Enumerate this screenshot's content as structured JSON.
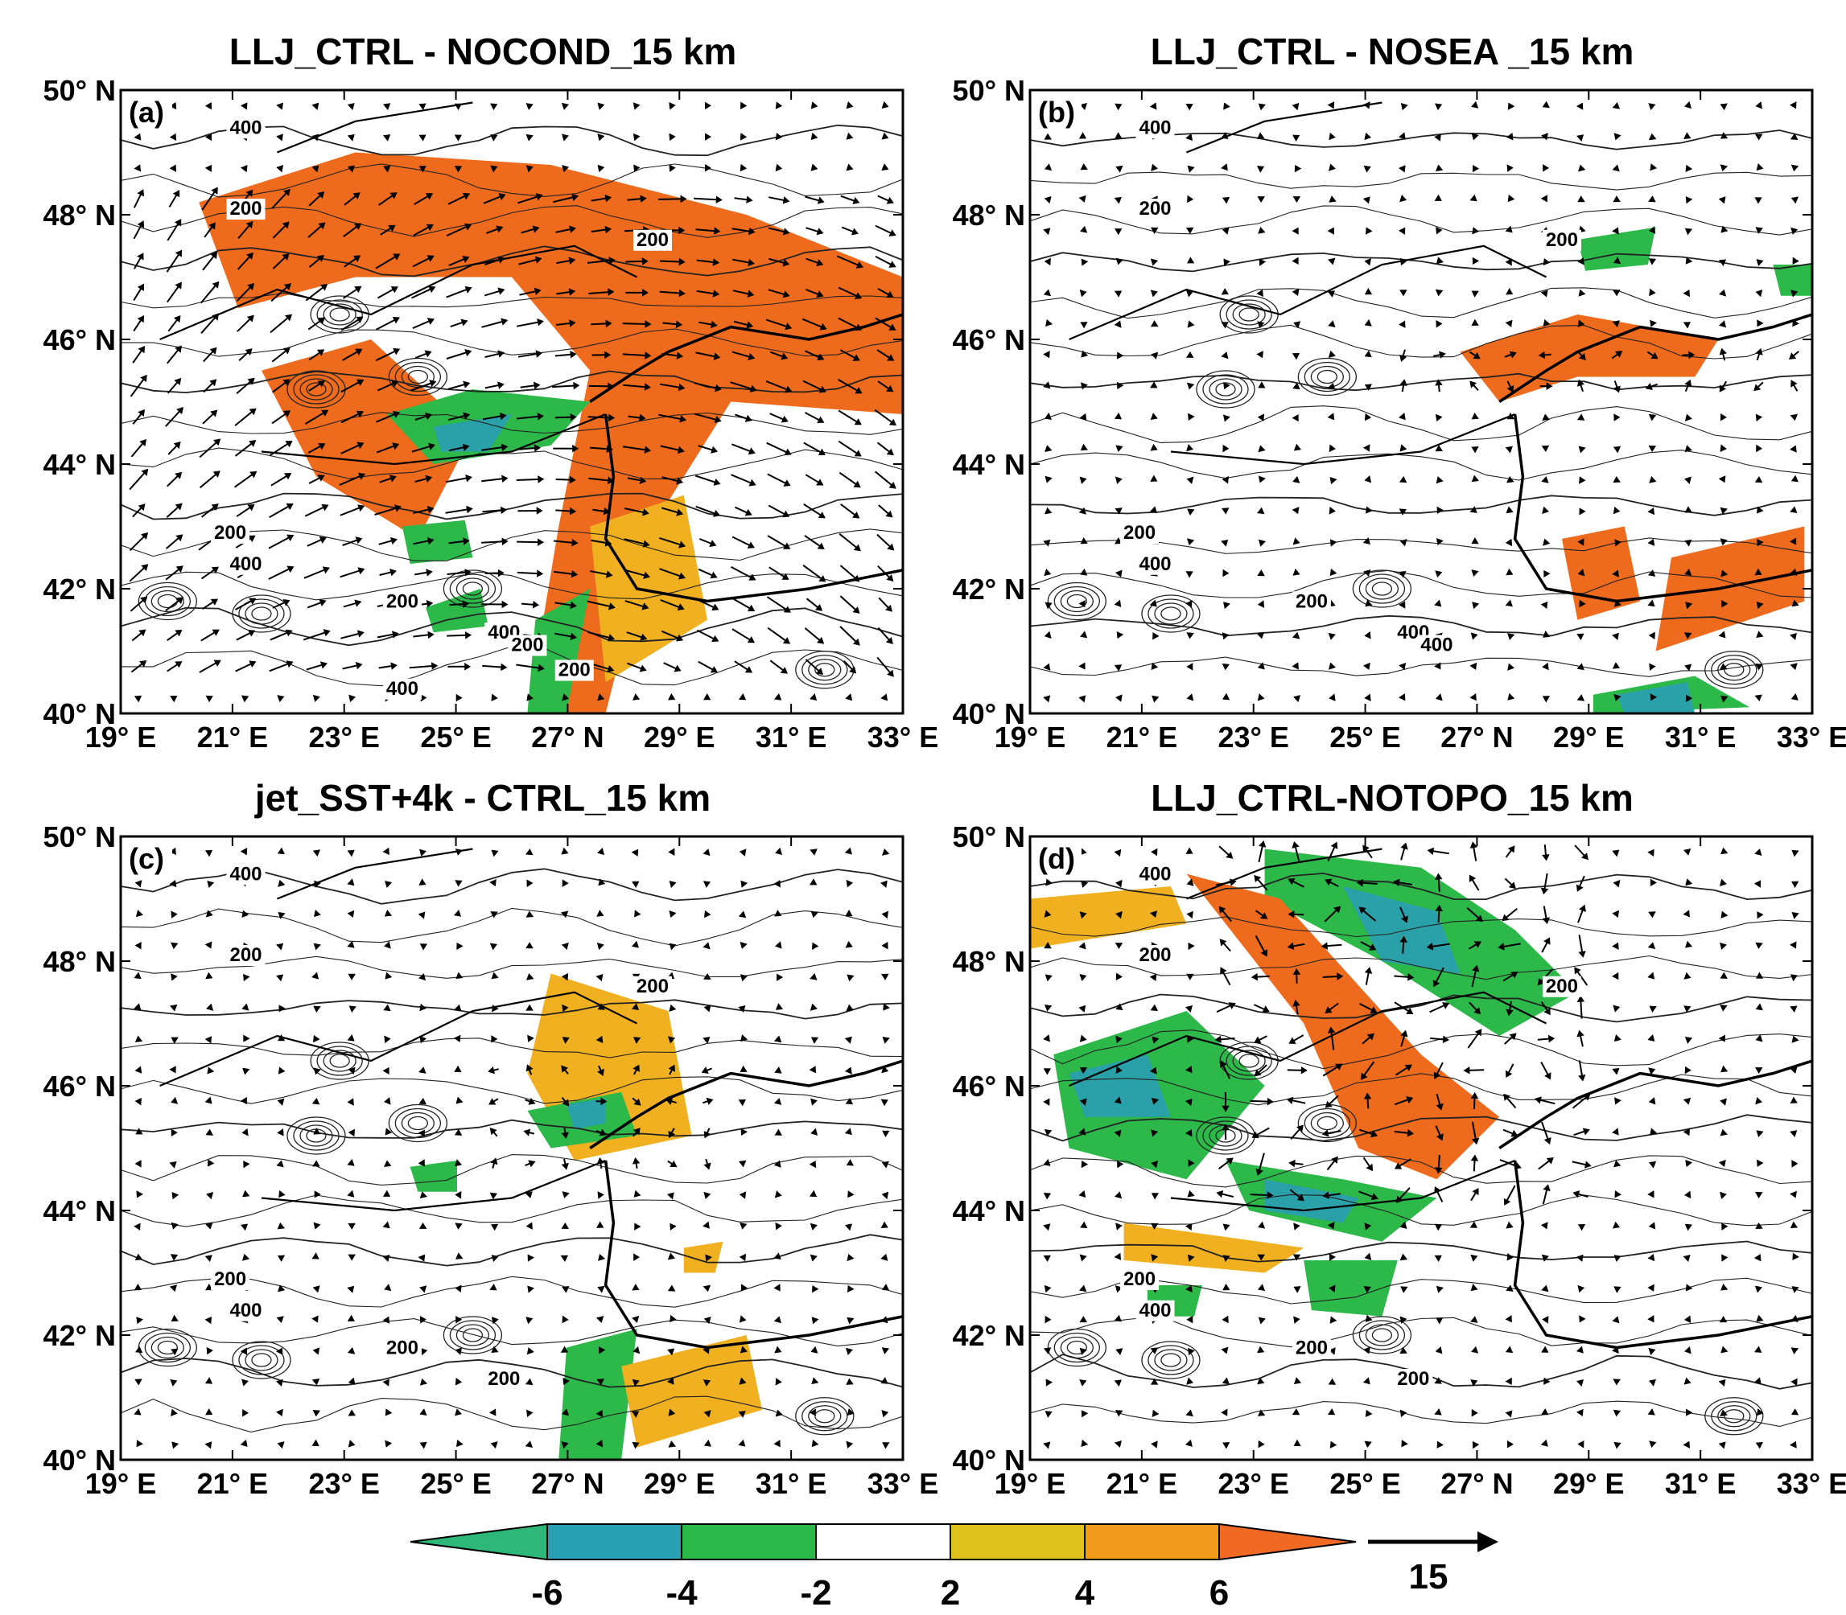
{
  "panels": [
    {
      "title": "LLJ_CTRL - NOCOND_15 km",
      "label": "(a)",
      "contour_labels": [
        "400",
        "200",
        "200",
        "200",
        "400",
        "200",
        "400",
        "200",
        "200",
        "400"
      ],
      "blobs": [
        {
          "c": "#ee6a1c",
          "pts": [
            [
              0.1,
              0.18
            ],
            [
              0.3,
              0.1
            ],
            [
              0.55,
              0.12
            ],
            [
              0.8,
              0.2
            ],
            [
              1.0,
              0.3
            ],
            [
              1.0,
              0.52
            ],
            [
              0.78,
              0.5
            ],
            [
              0.68,
              0.7
            ],
            [
              0.62,
              1.0
            ],
            [
              0.52,
              1.0
            ],
            [
              0.56,
              0.7
            ],
            [
              0.6,
              0.45
            ],
            [
              0.5,
              0.3
            ],
            [
              0.3,
              0.3
            ],
            [
              0.15,
              0.35
            ]
          ]
        },
        {
          "c": "#ee6a1c",
          "pts": [
            [
              0.18,
              0.45
            ],
            [
              0.32,
              0.4
            ],
            [
              0.45,
              0.55
            ],
            [
              0.38,
              0.72
            ],
            [
              0.25,
              0.62
            ]
          ]
        },
        {
          "c": "#f0b020",
          "pts": [
            [
              0.6,
              0.7
            ],
            [
              0.72,
              0.65
            ],
            [
              0.75,
              0.85
            ],
            [
              0.62,
              0.95
            ]
          ]
        },
        {
          "c": "#2db84a",
          "pts": [
            [
              0.34,
              0.52
            ],
            [
              0.45,
              0.48
            ],
            [
              0.6,
              0.5
            ],
            [
              0.55,
              0.57
            ],
            [
              0.4,
              0.6
            ]
          ]
        },
        {
          "c": "#2aa0a8",
          "pts": [
            [
              0.4,
              0.54
            ],
            [
              0.5,
              0.52
            ],
            [
              0.47,
              0.58
            ],
            [
              0.41,
              0.58
            ]
          ]
        },
        {
          "c": "#2db84a",
          "pts": [
            [
              0.36,
              0.7
            ],
            [
              0.44,
              0.69
            ],
            [
              0.45,
              0.75
            ],
            [
              0.37,
              0.76
            ]
          ]
        },
        {
          "c": "#2db84a",
          "pts": [
            [
              0.53,
              0.85
            ],
            [
              0.6,
              0.8
            ],
            [
              0.57,
              1.0
            ],
            [
              0.52,
              1.0
            ]
          ]
        },
        {
          "c": "#2db84a",
          "pts": [
            [
              0.39,
              0.83
            ],
            [
              0.46,
              0.8
            ],
            [
              0.47,
              0.86
            ],
            [
              0.4,
              0.87
            ]
          ]
        }
      ]
    },
    {
      "title": "LLJ_CTRL - NOSEA _15 km",
      "label": "(b)",
      "contour_labels": [
        "400",
        "200",
        "200",
        "200",
        "400",
        "200",
        "400",
        "400"
      ],
      "blobs": [
        {
          "c": "#ee6a1c",
          "pts": [
            [
              0.55,
              0.42
            ],
            [
              0.7,
              0.36
            ],
            [
              0.88,
              0.4
            ],
            [
              0.85,
              0.46
            ],
            [
              0.7,
              0.46
            ],
            [
              0.6,
              0.5
            ]
          ]
        },
        {
          "c": "#ee6a1c",
          "pts": [
            [
              0.68,
              0.72
            ],
            [
              0.76,
              0.7
            ],
            [
              0.78,
              0.82
            ],
            [
              0.7,
              0.85
            ]
          ]
        },
        {
          "c": "#ee6a1c",
          "pts": [
            [
              0.82,
              0.75
            ],
            [
              0.99,
              0.7
            ],
            [
              0.99,
              0.82
            ],
            [
              0.8,
              0.9
            ]
          ]
        },
        {
          "c": "#2db84a",
          "pts": [
            [
              0.7,
              0.24
            ],
            [
              0.8,
              0.22
            ],
            [
              0.79,
              0.28
            ],
            [
              0.71,
              0.29
            ]
          ]
        },
        {
          "c": "#2db84a",
          "pts": [
            [
              0.72,
              0.97
            ],
            [
              0.85,
              0.94
            ],
            [
              0.92,
              0.99
            ],
            [
              0.72,
              1.0
            ]
          ]
        },
        {
          "c": "#2db84a",
          "pts": [
            [
              0.95,
              0.28
            ],
            [
              1.0,
              0.28
            ],
            [
              1.0,
              0.33
            ],
            [
              0.96,
              0.33
            ]
          ]
        },
        {
          "c": "#2aa0a8",
          "pts": [
            [
              0.75,
              0.97
            ],
            [
              0.84,
              0.95
            ],
            [
              0.85,
              1.0
            ],
            [
              0.76,
              1.0
            ]
          ]
        }
      ]
    },
    {
      "title": "jet_SST+4k - CTRL_15 km",
      "label": "(c)",
      "contour_labels": [
        "400",
        "200",
        "200",
        "200",
        "400",
        "200",
        "200"
      ],
      "blobs": [
        {
          "c": "#f0b020",
          "pts": [
            [
              0.55,
              0.22
            ],
            [
              0.7,
              0.28
            ],
            [
              0.73,
              0.48
            ],
            [
              0.58,
              0.52
            ],
            [
              0.52,
              0.38
            ]
          ]
        },
        {
          "c": "#2db84a",
          "pts": [
            [
              0.52,
              0.44
            ],
            [
              0.64,
              0.41
            ],
            [
              0.66,
              0.48
            ],
            [
              0.55,
              0.5
            ]
          ]
        },
        {
          "c": "#2aa0a8",
          "pts": [
            [
              0.57,
              0.43
            ],
            [
              0.62,
              0.42
            ],
            [
              0.62,
              0.46
            ],
            [
              0.58,
              0.47
            ]
          ]
        },
        {
          "c": "#2db84a",
          "pts": [
            [
              0.37,
              0.53
            ],
            [
              0.43,
              0.52
            ],
            [
              0.43,
              0.57
            ],
            [
              0.38,
              0.57
            ]
          ]
        },
        {
          "c": "#2db84a",
          "pts": [
            [
              0.57,
              0.82
            ],
            [
              0.66,
              0.79
            ],
            [
              0.64,
              1.0
            ],
            [
              0.56,
              1.0
            ]
          ]
        },
        {
          "c": "#f0b020",
          "pts": [
            [
              0.64,
              0.85
            ],
            [
              0.8,
              0.8
            ],
            [
              0.82,
              0.92
            ],
            [
              0.66,
              0.98
            ]
          ]
        },
        {
          "c": "#f0b020",
          "pts": [
            [
              0.72,
              0.66
            ],
            [
              0.77,
              0.65
            ],
            [
              0.76,
              0.7
            ],
            [
              0.72,
              0.7
            ]
          ]
        }
      ]
    },
    {
      "title": "LLJ_CTRL-NOTOPO_15 km",
      "label": "(d)",
      "contour_labels": [
        "400",
        "200",
        "200",
        "200",
        "400",
        "200",
        "200"
      ],
      "blobs": [
        {
          "c": "#2db84a",
          "pts": [
            [
              0.3,
              0.02
            ],
            [
              0.5,
              0.05
            ],
            [
              0.62,
              0.15
            ],
            [
              0.7,
              0.25
            ],
            [
              0.6,
              0.32
            ],
            [
              0.45,
              0.2
            ],
            [
              0.3,
              0.1
            ]
          ]
        },
        {
          "c": "#2aa0a8",
          "pts": [
            [
              0.4,
              0.08
            ],
            [
              0.52,
              0.12
            ],
            [
              0.55,
              0.22
            ],
            [
              0.45,
              0.2
            ]
          ]
        },
        {
          "c": "#2db84a",
          "pts": [
            [
              0.03,
              0.35
            ],
            [
              0.2,
              0.28
            ],
            [
              0.3,
              0.4
            ],
            [
              0.2,
              0.55
            ],
            [
              0.05,
              0.5
            ]
          ]
        },
        {
          "c": "#2aa0a8",
          "pts": [
            [
              0.05,
              0.38
            ],
            [
              0.15,
              0.35
            ],
            [
              0.18,
              0.45
            ],
            [
              0.07,
              0.45
            ]
          ]
        },
        {
          "c": "#2db84a",
          "pts": [
            [
              0.25,
              0.52
            ],
            [
              0.4,
              0.55
            ],
            [
              0.52,
              0.58
            ],
            [
              0.45,
              0.65
            ],
            [
              0.28,
              0.6
            ]
          ]
        },
        {
          "c": "#2aa0a8",
          "pts": [
            [
              0.3,
              0.55
            ],
            [
              0.42,
              0.58
            ],
            [
              0.4,
              0.62
            ],
            [
              0.3,
              0.6
            ]
          ]
        },
        {
          "c": "#2db84a",
          "pts": [
            [
              0.35,
              0.68
            ],
            [
              0.47,
              0.68
            ],
            [
              0.45,
              0.77
            ],
            [
              0.36,
              0.76
            ]
          ]
        },
        {
          "c": "#ee6a1c",
          "pts": [
            [
              0.2,
              0.06
            ],
            [
              0.32,
              0.1
            ],
            [
              0.5,
              0.35
            ],
            [
              0.6,
              0.45
            ],
            [
              0.52,
              0.55
            ],
            [
              0.42,
              0.5
            ],
            [
              0.35,
              0.3
            ]
          ]
        },
        {
          "c": "#f0b020",
          "pts": [
            [
              0.0,
              0.1
            ],
            [
              0.18,
              0.08
            ],
            [
              0.2,
              0.14
            ],
            [
              0.0,
              0.18
            ]
          ]
        },
        {
          "c": "#f0b020",
          "pts": [
            [
              0.12,
              0.62
            ],
            [
              0.35,
              0.66
            ],
            [
              0.3,
              0.7
            ],
            [
              0.12,
              0.68
            ]
          ]
        },
        {
          "c": "#2db84a",
          "pts": [
            [
              0.15,
              0.72
            ],
            [
              0.22,
              0.72
            ],
            [
              0.21,
              0.77
            ],
            [
              0.15,
              0.77
            ]
          ]
        }
      ]
    }
  ],
  "axes": {
    "lat_labels": [
      "50° N",
      "48° N",
      "46° N",
      "44° N",
      "42° N",
      "40° N"
    ],
    "lon_labels": [
      "19° E",
      "21° E",
      "23° E",
      "25° E",
      "27° N",
      "29° E",
      "31° E",
      "33° E"
    ]
  },
  "colorbar": {
    "labels": [
      "-6",
      "-4",
      "-2",
      "2",
      "4",
      "6"
    ],
    "colors": [
      "#2db87a",
      "#2aa0b4",
      "#2db84a",
      "#ffffff",
      "#e0c21c",
      "#f09a1c",
      "#f06a24"
    ],
    "arrow_label": "15"
  }
}
